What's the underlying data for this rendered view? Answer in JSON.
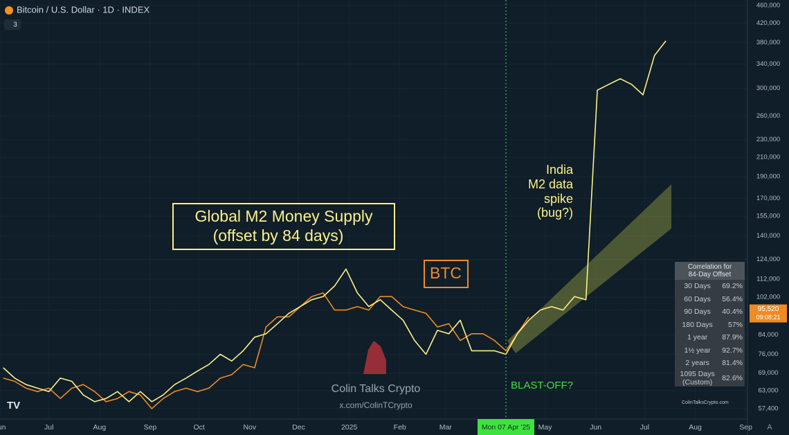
{
  "chart_data": {
    "type": "line",
    "title": "Bitcoin / U.S. Dollar · 1D · INDEX",
    "badge": "3",
    "ylog": true,
    "grid": true,
    "ylim": [
      54400,
      473000
    ],
    "yticks": [
      {
        "value": 57400,
        "label": "57,400"
      },
      {
        "value": 63000,
        "label": "63,000"
      },
      {
        "value": 69000,
        "label": "69,000"
      },
      {
        "value": 76000,
        "label": "76,000"
      },
      {
        "value": 84000,
        "label": "84,000"
      },
      {
        "value": 102000,
        "label": "102,000"
      },
      {
        "value": 112000,
        "label": "112,000"
      },
      {
        "value": 124000,
        "label": "124,000"
      },
      {
        "value": 140000,
        "label": "140,000"
      },
      {
        "value": 155000,
        "label": "155,000"
      },
      {
        "value": 170000,
        "label": "170,000"
      },
      {
        "value": 190000,
        "label": "190,000"
      },
      {
        "value": 210000,
        "label": "210,000"
      },
      {
        "value": 230000,
        "label": "230,000"
      },
      {
        "value": 260000,
        "label": "260,000"
      },
      {
        "value": 300000,
        "label": "300,000"
      },
      {
        "value": 340000,
        "label": "340,000"
      },
      {
        "value": 380000,
        "label": "380,000"
      },
      {
        "value": 420000,
        "label": "420,000"
      },
      {
        "value": 460000,
        "label": "460,000"
      }
    ],
    "xlim": [
      "2024-06-01",
      "2025-09-02"
    ],
    "xticks": [
      {
        "value": "2024-06-01",
        "label": "Jun"
      },
      {
        "value": "2024-07-01",
        "label": "Jul"
      },
      {
        "value": "2024-08-01",
        "label": "Aug"
      },
      {
        "value": "2024-09-01",
        "label": "Sep"
      },
      {
        "value": "2024-10-01",
        "label": "Oct"
      },
      {
        "value": "2024-11-01",
        "label": "Nov"
      },
      {
        "value": "2024-12-01",
        "label": "Dec"
      },
      {
        "value": "2025-01-01",
        "label": "2025"
      },
      {
        "value": "2025-02-01",
        "label": "Feb"
      },
      {
        "value": "2025-03-01",
        "label": "Mar"
      },
      {
        "value": "2025-05-01",
        "label": "May"
      },
      {
        "value": "2025-06-01",
        "label": "Jun"
      },
      {
        "value": "2025-07-01",
        "label": "Jul"
      },
      {
        "value": "2025-08-01",
        "label": "Aug"
      },
      {
        "value": "2025-09-01",
        "label": "Sep"
      }
    ],
    "x": [
      "2024-06-03",
      "2024-06-10",
      "2024-06-17",
      "2024-06-24",
      "2024-07-01",
      "2024-07-08",
      "2024-07-15",
      "2024-07-22",
      "2024-07-29",
      "2024-08-05",
      "2024-08-12",
      "2024-08-19",
      "2024-08-26",
      "2024-09-02",
      "2024-09-09",
      "2024-09-16",
      "2024-09-23",
      "2024-09-30",
      "2024-10-07",
      "2024-10-14",
      "2024-10-21",
      "2024-10-28",
      "2024-11-04",
      "2024-11-11",
      "2024-11-18",
      "2024-11-25",
      "2024-12-02",
      "2024-12-09",
      "2024-12-16",
      "2024-12-23",
      "2024-12-30",
      "2025-01-06",
      "2025-01-13",
      "2025-01-20",
      "2025-01-27",
      "2025-02-03",
      "2025-02-10",
      "2025-02-17",
      "2025-02-24",
      "2025-03-03",
      "2025-03-10",
      "2025-03-17",
      "2025-03-24",
      "2025-03-31",
      "2025-04-07",
      "2025-04-14",
      "2025-04-21",
      "2025-04-28",
      "2025-05-05",
      "2025-05-12",
      "2025-05-19",
      "2025-05-26",
      "2025-06-02",
      "2025-06-09",
      "2025-06-16",
      "2025-06-23",
      "2025-06-30",
      "2025-07-07",
      "2025-07-14"
    ],
    "series": [
      {
        "name": "BTC",
        "color": "#f08a24",
        "values": [
          67200,
          66100,
          63800,
          62700,
          63800,
          60500,
          63800,
          65000,
          62700,
          59500,
          60500,
          62700,
          61600,
          57400,
          60500,
          62700,
          63800,
          62700,
          63800,
          67200,
          68400,
          72100,
          70900,
          87500,
          92200,
          92200,
          97200,
          102400,
          104300,
          95500,
          95500,
          97200,
          95500,
          102400,
          102400,
          97200,
          95500,
          93900,
          87500,
          89000,
          81600,
          84500,
          84500,
          81600,
          77400,
          84500,
          92200,
          null,
          null,
          null,
          null,
          null,
          null,
          null,
          null,
          null,
          null,
          null,
          null
        ]
      },
      {
        "name": "Global M2 Money Supply",
        "color": "#fdf08a",
        "values": [
          70900,
          67200,
          65000,
          63800,
          62700,
          67200,
          66100,
          61600,
          59500,
          60500,
          62700,
          59500,
          62700,
          59500,
          61600,
          65000,
          67200,
          69700,
          72100,
          76000,
          73400,
          77400,
          83000,
          84500,
          89000,
          93900,
          97200,
          100700,
          102400,
          108100,
          118000,
          104300,
          97200,
          100700,
          95500,
          90600,
          81600,
          76000,
          86000,
          84500,
          90600,
          77400,
          77400,
          77400,
          76000,
          84500,
          90600,
          95500,
          97200,
          95500,
          102400,
          100700,
          297000,
          306000,
          315000,
          306000,
          290000,
          355000,
          383000
        ]
      }
    ],
    "m2_note": "(offset by 84 days)",
    "india_note": [
      "India",
      "M2 data",
      "spike",
      "(bug?)"
    ],
    "blast_off": "BLAST-OFF?",
    "cursor": {
      "x": "2025-04-07",
      "label": "Mon 07 Apr '25"
    },
    "price_label": {
      "value": 95520,
      "label": "95,520",
      "timer": "09:08:21"
    },
    "watermark": [
      "Colin Talks Crypto",
      "x.com/ColinTCrypto"
    ]
  },
  "correlation_table": {
    "title": [
      "Correlation for",
      "84-Day Offset"
    ],
    "rows": [
      [
        "30 Days",
        "69.2%"
      ],
      [
        "60 Days",
        "56.4%"
      ],
      [
        "90 Days",
        "40.4%"
      ],
      [
        "180 Days",
        "57%"
      ],
      [
        "1 year",
        "87.9%"
      ],
      [
        "1½ year",
        "92.7%"
      ],
      [
        "2 years",
        "81.4%"
      ],
      [
        "1095 Days (Custom)",
        "82.6%"
      ]
    ]
  },
  "site": "ColinTalksCrypto.com",
  "auto_button": "A"
}
